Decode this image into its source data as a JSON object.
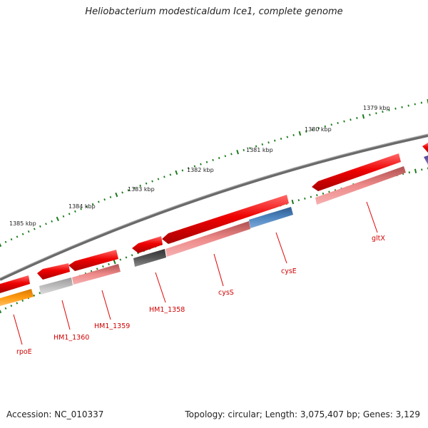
{
  "title": "Heliobacterium modesticaldum Ice1, complete genome",
  "footer": {
    "accession": "Accession: NC_010337",
    "summary": "Topology: circular; Length: 3,075,407 bp; Genes: 3,129"
  },
  "scale_labels": [
    "1379 kbp",
    "1380 kbp",
    "1381 kbp",
    "1382 kbp",
    "1383 kbp",
    "1384 kbp",
    "1385 kbp"
  ],
  "genes": [
    "gltX",
    "cysE",
    "cysS",
    "HM1_1358",
    "HM1_1359",
    "HM1_1360",
    "rpoE"
  ],
  "colors": {
    "strand_arrow": "#e80000",
    "tick": "#1a7a1a",
    "backbone": "#777777",
    "label": "#d00000",
    "gene_pink": "#ee8a8a",
    "gene_blue": "#4f86c0",
    "gene_dark": "#555555",
    "gene_lightgray": "#bcbcbc",
    "gene_orange": "#ff9a10",
    "gene_purple": "#7060b0"
  }
}
